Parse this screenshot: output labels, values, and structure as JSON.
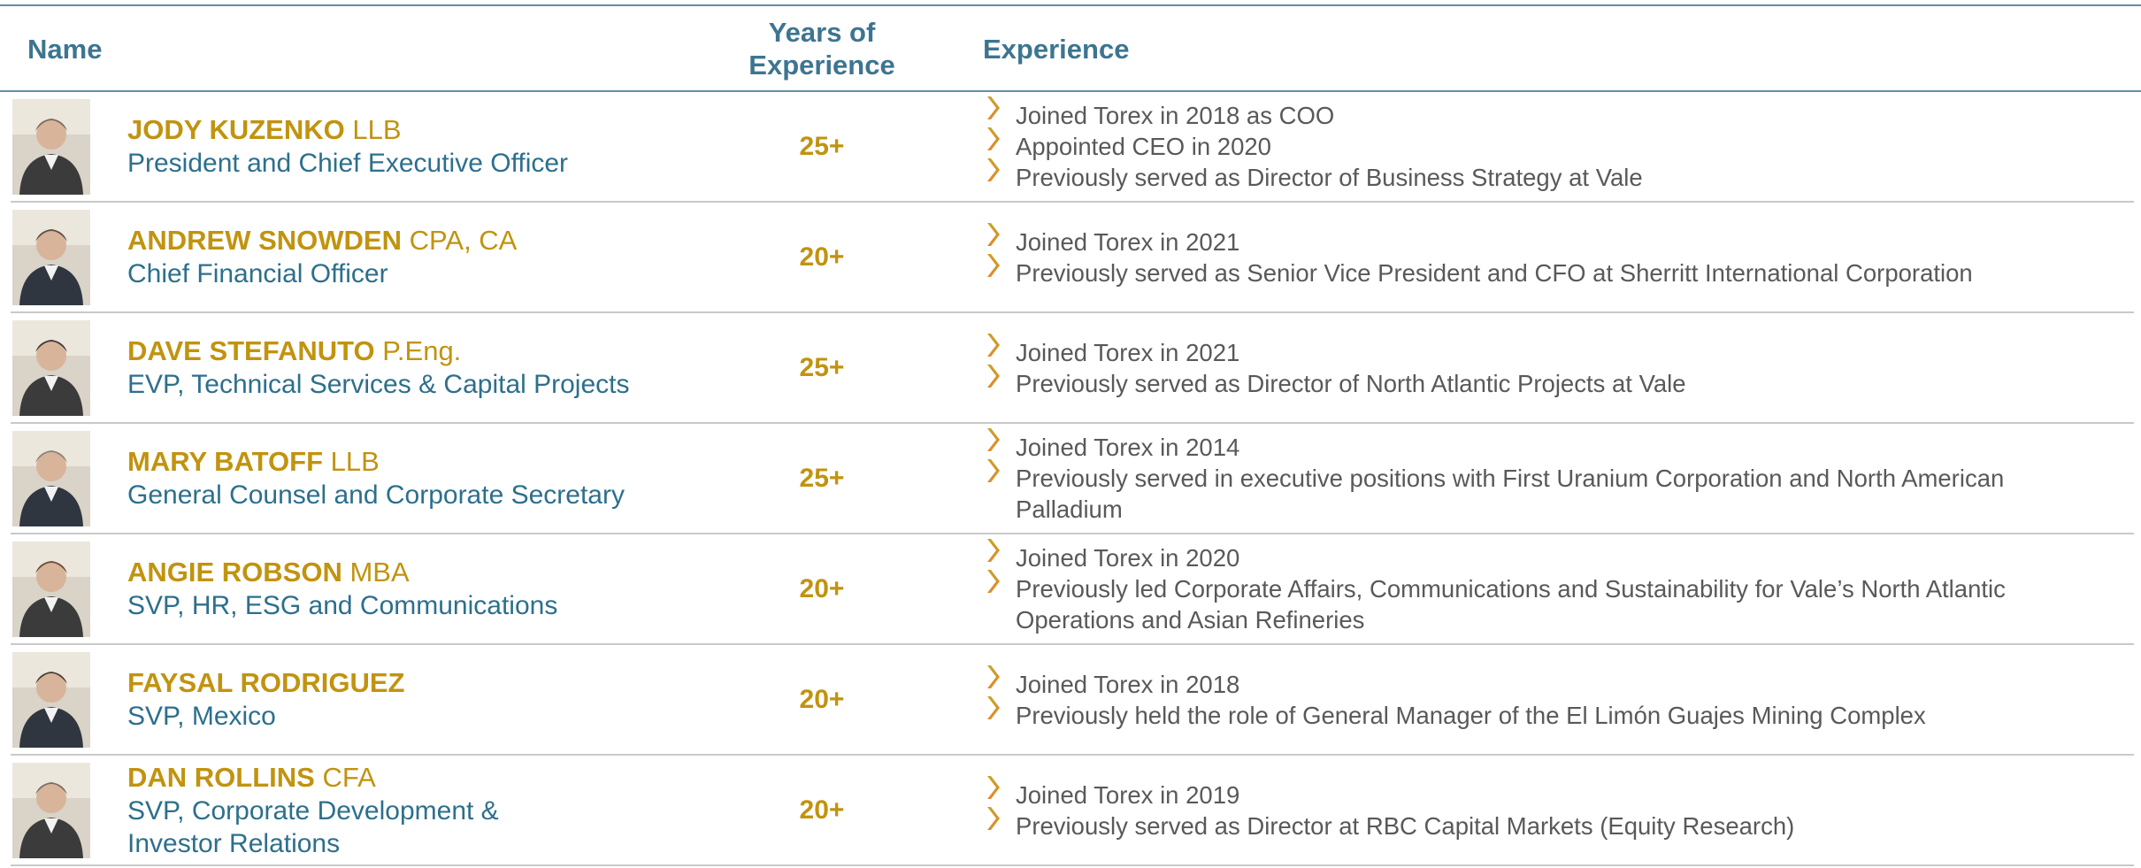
{
  "header": {
    "name": "Name",
    "years": "Years of Experience",
    "experience": "Experience"
  },
  "rows": [
    {
      "name": "JODY KUZENKO",
      "credential": "LLB",
      "title": [
        "President and Chief Executive Officer"
      ],
      "years": "25+",
      "experience": [
        "Joined Torex in 2018 as COO",
        "Appointed CEO in 2020",
        "Previously served as Director of Business Strategy at Vale"
      ]
    },
    {
      "name": "ANDREW SNOWDEN",
      "credential": "CPA, CA",
      "title": [
        "Chief Financial Officer"
      ],
      "years": "20+",
      "experience": [
        "Joined Torex in 2021",
        "Previously served as Senior Vice President and CFO at Sherritt International Corporation"
      ]
    },
    {
      "name": "DAVE STEFANUTO",
      "credential": "P.Eng.",
      "title": [
        "EVP, Technical Services & Capital Projects"
      ],
      "years": "25+",
      "experience": [
        "Joined Torex in 2021",
        "Previously served as Director of North Atlantic Projects at Vale"
      ]
    },
    {
      "name": "MARY BATOFF",
      "credential": "LLB",
      "title": [
        "General Counsel and Corporate Secretary"
      ],
      "years": "25+",
      "experience": [
        "Joined Torex in 2014",
        "Previously served in executive positions with First Uranium Corporation and North American Palladium"
      ]
    },
    {
      "name": "ANGIE ROBSON",
      "credential": "MBA",
      "title": [
        "SVP, HR, ESG and Communications"
      ],
      "years": "20+",
      "experience": [
        "Joined Torex in 2020",
        "Previously led Corporate Affairs, Communications and Sustainability for Vale’s North Atlantic Operations and Asian Refineries"
      ]
    },
    {
      "name": "FAYSAL RODRIGUEZ",
      "credential": null,
      "title": [
        "SVP, Mexico"
      ],
      "years": "20+",
      "experience": [
        "Joined Torex in 2018",
        "Previously held the role of General Manager of the El Limón Guajes Mining Complex"
      ]
    },
    {
      "name": "DAN ROLLINS",
      "credential": "CFA",
      "title": [
        "SVP, Corporate Development &",
        "Investor Relations"
      ],
      "years": "20+",
      "experience": [
        "Joined Torex in 2019",
        "Previously served as Director at RBC Capital Markets (Equity Research)"
      ]
    }
  ]
}
